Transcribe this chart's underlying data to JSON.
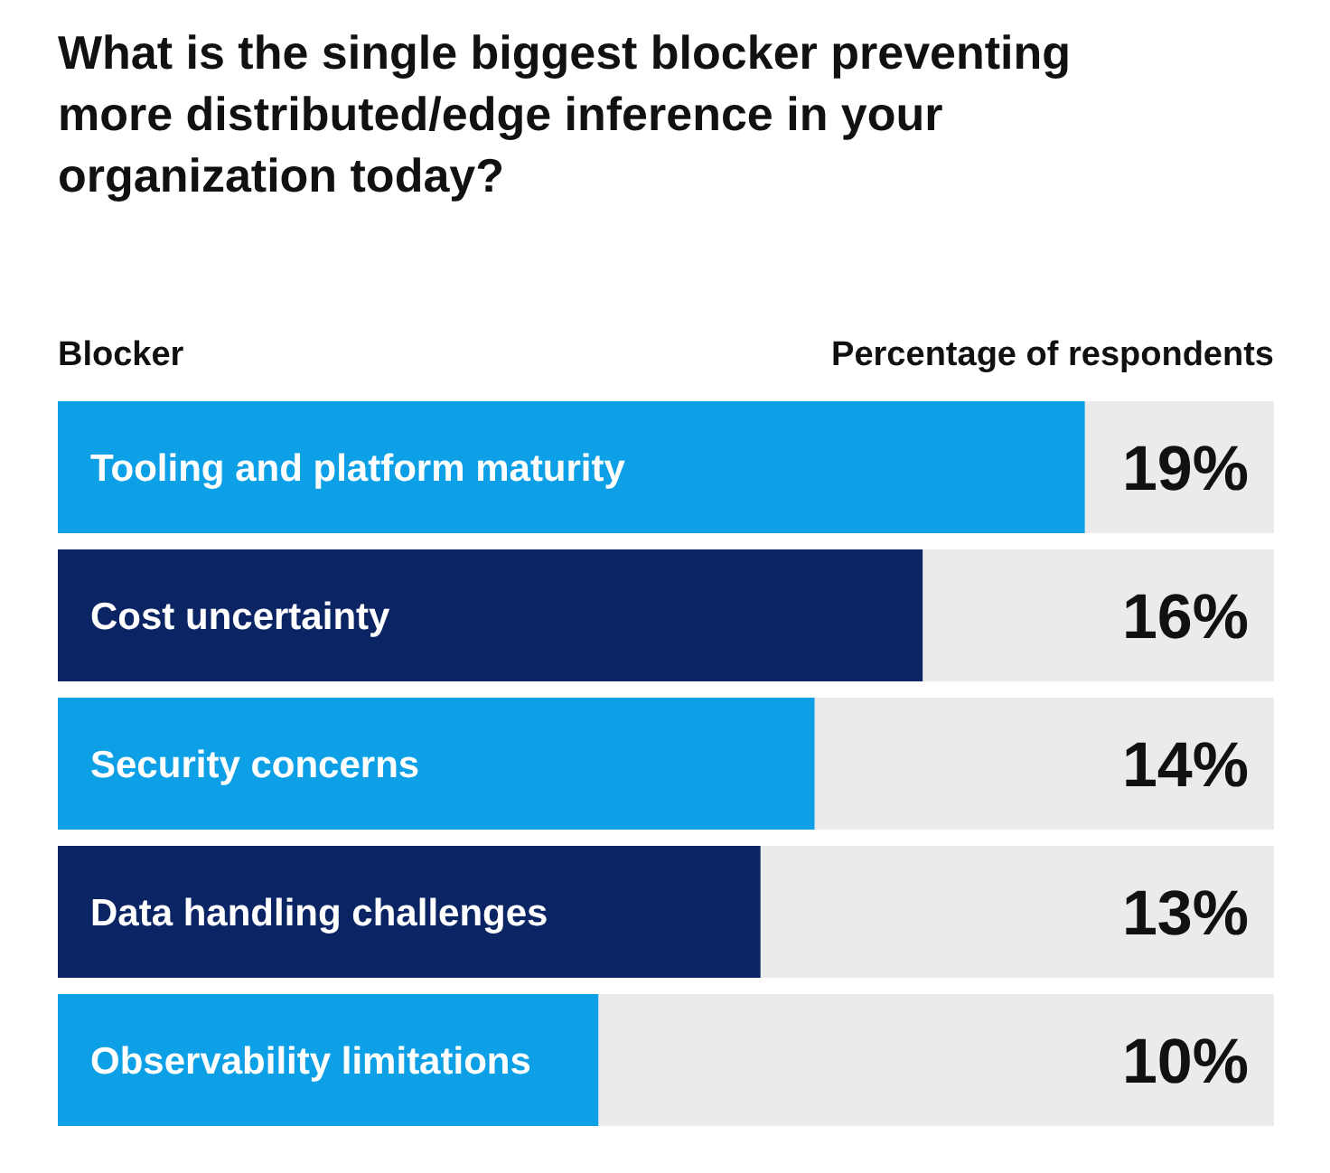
{
  "chart_data": {
    "type": "bar",
    "orientation": "horizontal",
    "title": "What is the single biggest blocker preventing more distributed/edge inference in your organization today?",
    "ylabel": "Blocker",
    "xlabel": "Percentage of respondents",
    "categories": [
      "Tooling and platform maturity",
      "Cost uncertainty",
      "Security concerns",
      "Data handling challenges",
      "Observability limitations"
    ],
    "values": [
      19,
      16,
      14,
      13,
      10
    ],
    "colors": [
      "#0ea0e6",
      "#0b2463",
      "#0ea0e6",
      "#0b2463",
      "#0ea0e6"
    ],
    "value_labels": [
      "19%",
      "16%",
      "14%",
      "13%",
      "10%"
    ],
    "xlim": [
      0,
      22.5
    ],
    "tick_labels": "y"
  }
}
